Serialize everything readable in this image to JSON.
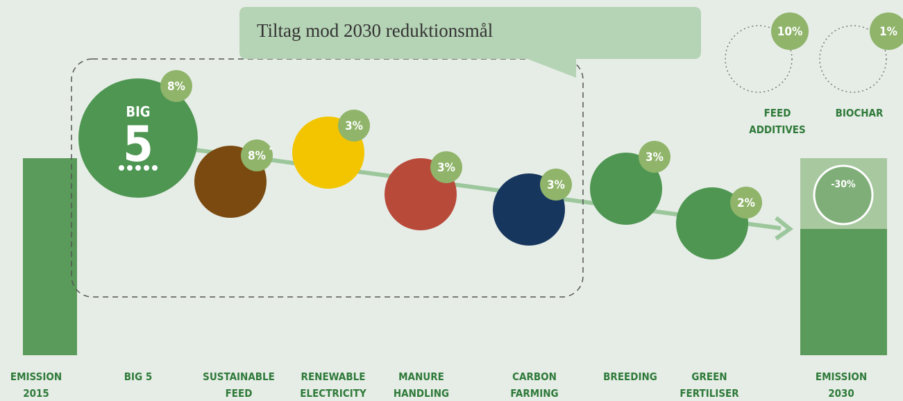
{
  "callout": {
    "title": "Tiltag mod 2030 reduktionsmål"
  },
  "emission_2015": {
    "label": [
      "EMISSION",
      "2015"
    ]
  },
  "emission_2030": {
    "label": [
      "EMISSION",
      "2030"
    ],
    "badge": "-30%"
  },
  "big5_icon": {
    "top": "BIG",
    "number": "5"
  },
  "initiatives": [
    {
      "label": [
        "BIG 5"
      ],
      "badge": "8%"
    },
    {
      "label": [
        "SUSTAINABLE",
        "FEED"
      ],
      "badge": "8%",
      "note": "*"
    },
    {
      "label": [
        "RENEWABLE",
        "ELECTRICITY"
      ],
      "badge": "3%"
    },
    {
      "label": [
        "MANURE",
        "HANDLING"
      ],
      "badge": "3%"
    },
    {
      "label": [
        "CARBON",
        "FARMING"
      ],
      "badge": "3%"
    },
    {
      "label": [
        "BREEDING"
      ],
      "badge": "3%"
    },
    {
      "label": [
        "GREEN",
        "FERTILISER"
      ],
      "badge": "2%"
    }
  ],
  "future": [
    {
      "label": [
        "FEED",
        "ADDITIVES"
      ],
      "badge": "10%"
    },
    {
      "label": [
        "BIOCHAR"
      ],
      "badge": "1%"
    }
  ]
}
